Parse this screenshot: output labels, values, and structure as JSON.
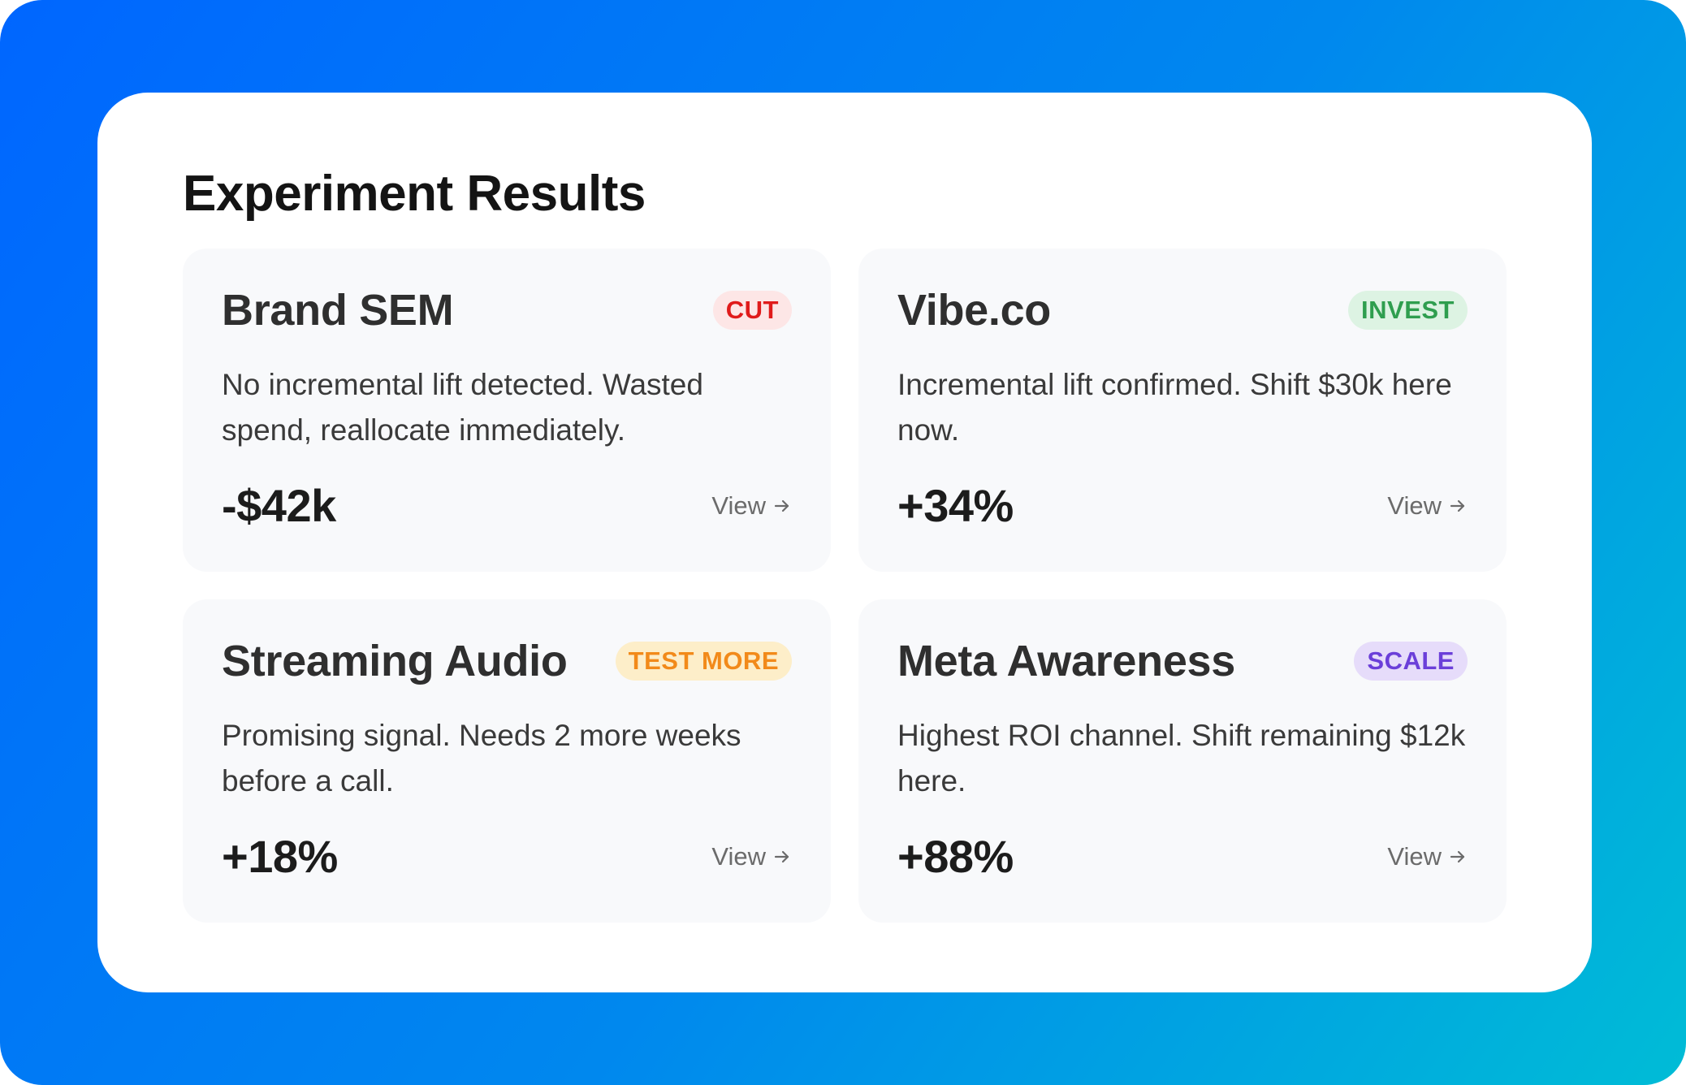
{
  "page": {
    "title": "Experiment Results"
  },
  "colors": {
    "background_gradient_start": "#0066ff",
    "background_gradient_end": "#00bcd6",
    "panel": "#ffffff",
    "card": "#f8f9fb",
    "cut": "#e01b1b",
    "invest": "#2f9e4f",
    "test_more": "#f28a1a",
    "scale": "#6b3fd9"
  },
  "cards": [
    {
      "title": "Brand SEM",
      "badge": "CUT",
      "badge_color": "red",
      "description": "No incremental lift detected. Wasted spend, reallocate immediately.",
      "metric": "-$42k",
      "link_label": "View",
      "link_icon": "arrow-right-icon"
    },
    {
      "title": "Vibe.co",
      "badge": "INVEST",
      "badge_color": "green",
      "description": "Incremental lift confirmed. Shift $30k here now.",
      "metric": "+34%",
      "link_label": "View",
      "link_icon": "arrow-right-icon"
    },
    {
      "title": "Streaming Audio",
      "badge": "TEST MORE",
      "badge_color": "orange",
      "description": "Promising signal. Needs 2 more weeks before a call.",
      "metric": "+18%",
      "link_label": "View",
      "link_icon": "arrow-right-icon"
    },
    {
      "title": "Meta Awareness",
      "badge": "SCALE",
      "badge_color": "purple",
      "description": "Highest ROI channel. Shift remaining $12k here.",
      "metric": "+88%",
      "link_label": "View",
      "link_icon": "arrow-right-icon"
    }
  ]
}
